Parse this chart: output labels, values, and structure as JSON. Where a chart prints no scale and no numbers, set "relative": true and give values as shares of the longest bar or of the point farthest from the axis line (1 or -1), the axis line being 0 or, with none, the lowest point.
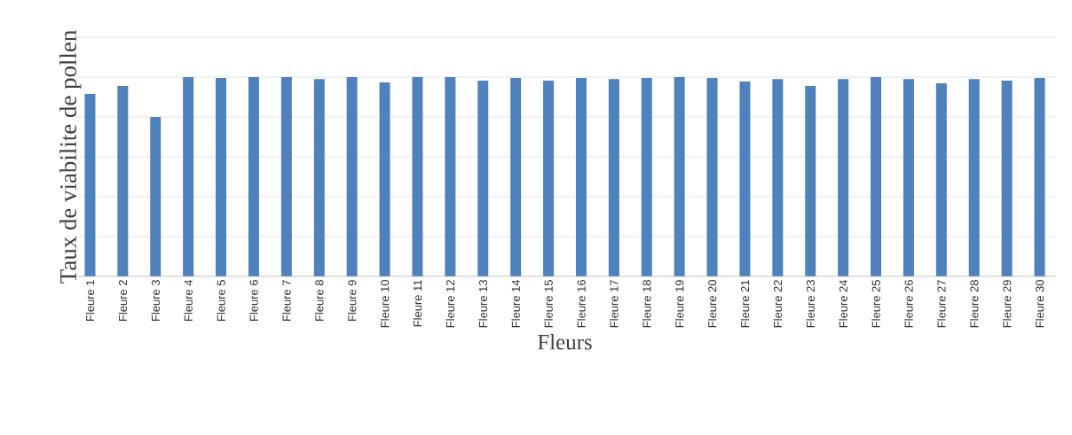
{
  "chart_data": {
    "type": "bar",
    "relative": true,
    "grid": "y",
    "color": "#4f81bd",
    "xlabel": "Fleurs",
    "ylabel": "Taux de viabilite de pollen",
    "categories": [
      "Fleure 1",
      "Fleure 2",
      "Fleure 3",
      "Fleure 4",
      "Fleure 5",
      "Fleure 6",
      "Fleure 7",
      "Fleure 8",
      "Fleure 9",
      "Fleure 10",
      "Fleure 11",
      "Fleure 12",
      "Fleure 13",
      "Fleure 14",
      "Fleure 15",
      "Fleure 16",
      "Fleure 17",
      "Fleure 18",
      "Fleure 19",
      "Fleure 20",
      "Fleure 21",
      "Fleure 22",
      "Fleure 23",
      "Fleure 24",
      "Fleure 25",
      "Fleure 26",
      "Fleure 27",
      "Fleure 28",
      "Fleure 29",
      "Fleure 30"
    ],
    "values": [
      0.915,
      0.955,
      0.8,
      1,
      0.996,
      1,
      1,
      0.99,
      1,
      0.973,
      1,
      1,
      0.982,
      0.996,
      0.982,
      0.996,
      0.99,
      0.996,
      1,
      0.996,
      0.978,
      0.99,
      0.955,
      0.99,
      1,
      0.99,
      0.969,
      0.99,
      0.982,
      0.996
    ]
  }
}
